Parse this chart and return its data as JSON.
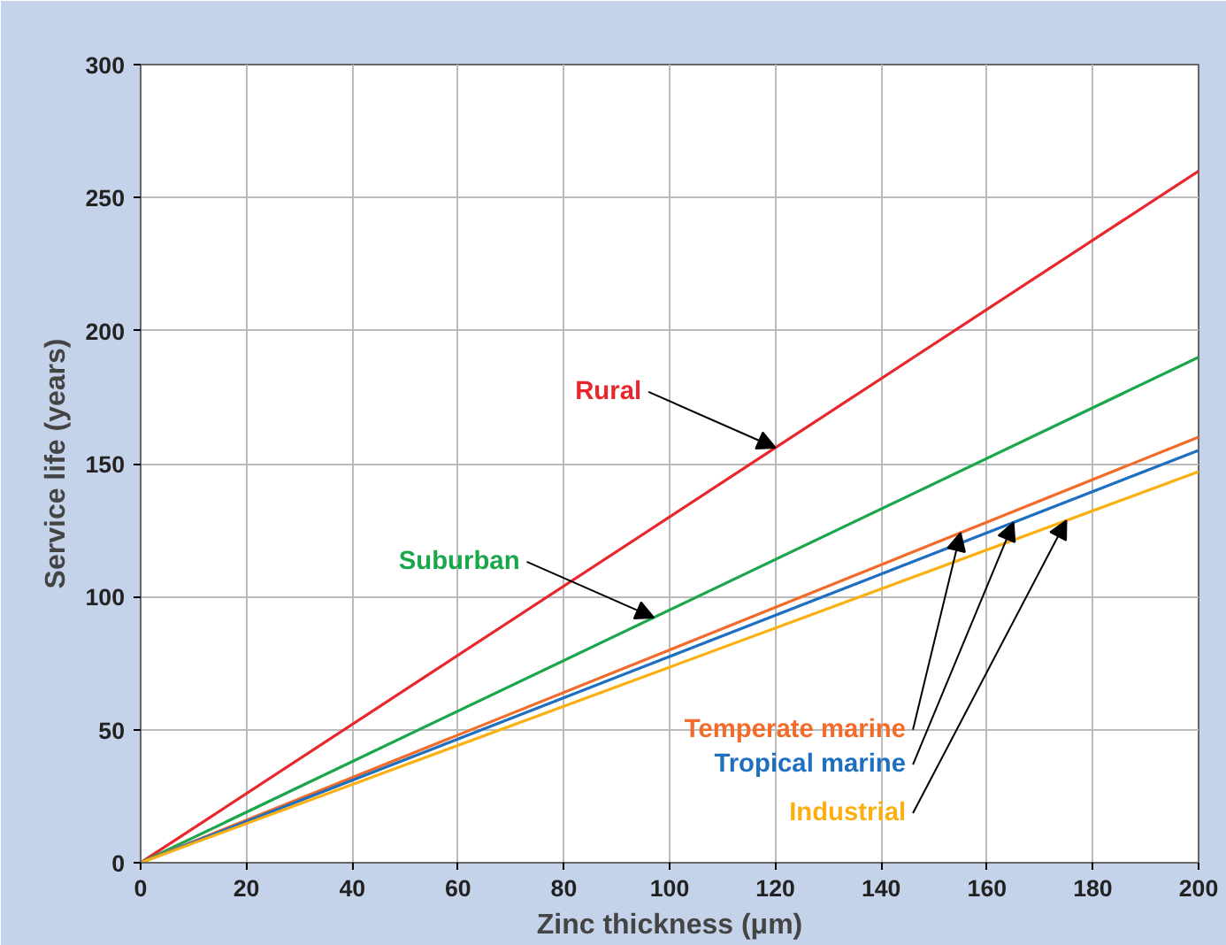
{
  "chart_data": {
    "type": "line",
    "xlabel": "Zinc thickness (μm)",
    "ylabel": "Service life (years)",
    "x": [
      0,
      200
    ],
    "series": [
      {
        "name": "Rural",
        "color": "#e8262b",
        "values": [
          0,
          260
        ]
      },
      {
        "name": "Suburban",
        "color": "#1aa64a",
        "values": [
          0,
          190
        ]
      },
      {
        "name": "Temperate marine",
        "color": "#f26b2a",
        "values": [
          0,
          160
        ]
      },
      {
        "name": "Tropical marine",
        "color": "#1f6fc0",
        "values": [
          0,
          155
        ]
      },
      {
        "name": "Industrial",
        "color": "#fbb012",
        "values": [
          0,
          147
        ]
      }
    ],
    "xlim": [
      0,
      200
    ],
    "ylim": [
      0,
      300
    ],
    "xticks": [
      0,
      20,
      40,
      60,
      80,
      100,
      120,
      140,
      160,
      180,
      200
    ],
    "yticks": [
      0,
      50,
      100,
      150,
      200,
      250,
      300
    ],
    "grid": true,
    "legend": false,
    "marker": "none",
    "line_style": "solid"
  }
}
